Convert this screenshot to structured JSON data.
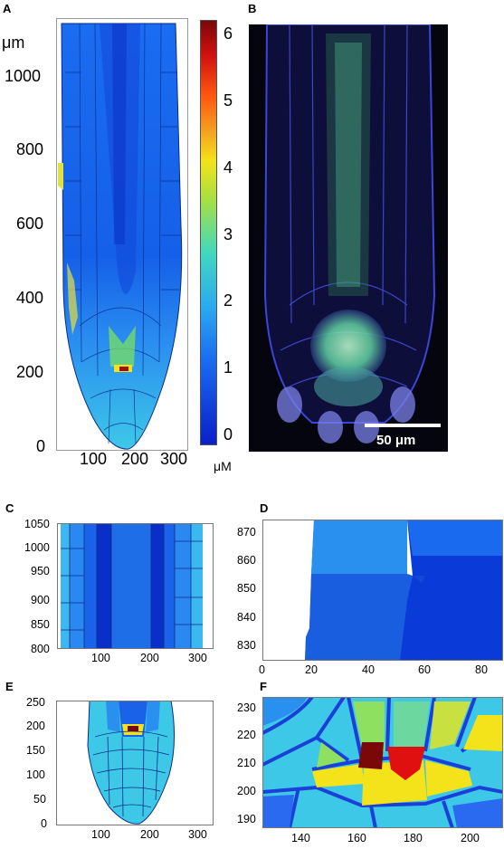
{
  "panels": {
    "a": {
      "label": "A",
      "unit_y": "μm",
      "y_ticks": [
        "1000",
        "800",
        "600",
        "400",
        "200",
        "0"
      ],
      "x_ticks": [
        "100",
        "200",
        "300"
      ]
    },
    "b": {
      "label": "B",
      "scale_bar": "50 μm"
    },
    "c": {
      "label": "C",
      "y_ticks": [
        "1050",
        "1000",
        "950",
        "900",
        "850",
        "800"
      ],
      "x_ticks": [
        "100",
        "200",
        "300"
      ]
    },
    "d": {
      "label": "D",
      "y_ticks": [
        "870",
        "860",
        "850",
        "840",
        "830"
      ],
      "x_ticks": [
        "0",
        "20",
        "40",
        "60",
        "80"
      ]
    },
    "e": {
      "label": "E",
      "y_ticks": [
        "250",
        "200",
        "150",
        "100",
        "50",
        "0"
      ],
      "x_ticks": [
        "100",
        "200",
        "300"
      ]
    },
    "f": {
      "label": "F",
      "y_ticks": [
        "230",
        "220",
        "210",
        "200",
        "190"
      ],
      "x_ticks": [
        "140",
        "160",
        "180",
        "200"
      ]
    }
  },
  "colorbar": {
    "ticks": [
      "6",
      "5",
      "4",
      "3",
      "2",
      "1",
      "0"
    ],
    "unit": "μM"
  },
  "colors": {
    "low": "#0a1fc8",
    "mid": "#1a7ff0",
    "cyan": "#3ec8e8",
    "yellow": "#f4e21a",
    "red": "#d01010",
    "darkred": "#7a0808"
  }
}
